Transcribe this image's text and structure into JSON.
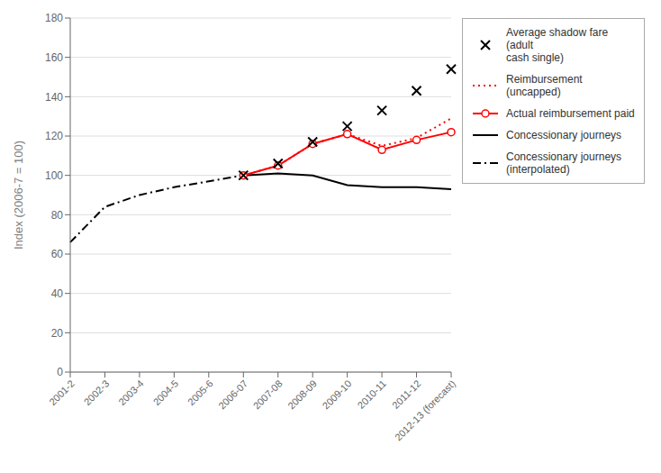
{
  "chart_data": {
    "type": "line",
    "categories": [
      "2001-2",
      "2002-3",
      "2003-4",
      "2004-5",
      "2005-6",
      "2006-07",
      "2007-08",
      "2008-09",
      "2009-10",
      "2010-11",
      "2011-12",
      "2012-13 (forecast)"
    ],
    "ylabel": "Index (2006-7 = 100)",
    "ylim": [
      0,
      180
    ],
    "yticks": [
      0,
      20,
      40,
      60,
      80,
      100,
      120,
      140,
      160,
      180
    ],
    "grid": true,
    "legend": "right",
    "series": [
      {
        "name": "Average shadow fare (adult\ncash single)",
        "color": "#000000",
        "marker": "x",
        "line_style": "none",
        "values": [
          null,
          null,
          null,
          null,
          null,
          100,
          106,
          117,
          125,
          133,
          143,
          154
        ]
      },
      {
        "name": "Reimbursement\n(uncapped)",
        "color": "#FF0000",
        "line_style": "dotted",
        "values": [
          null,
          null,
          null,
          null,
          null,
          100,
          105,
          116,
          121,
          115,
          119,
          129
        ]
      },
      {
        "name": "Actual reimbursement paid",
        "color": "#FF0000",
        "marker": "circle",
        "line_style": "solid",
        "values": [
          null,
          null,
          null,
          null,
          null,
          100,
          105,
          116,
          121,
          113,
          118,
          122
        ]
      },
      {
        "name": "Concessionary journeys",
        "color": "#000000",
        "line_style": "solid",
        "values": [
          null,
          null,
          null,
          null,
          null,
          100,
          101,
          100,
          95,
          94,
          94,
          93
        ]
      },
      {
        "name": "Concessionary journeys\n(interpolated)",
        "color": "#000000",
        "line_style": "dashdot",
        "values": [
          66,
          84,
          90,
          94,
          97,
          100,
          null,
          null,
          null,
          null,
          null,
          null
        ]
      }
    ]
  }
}
